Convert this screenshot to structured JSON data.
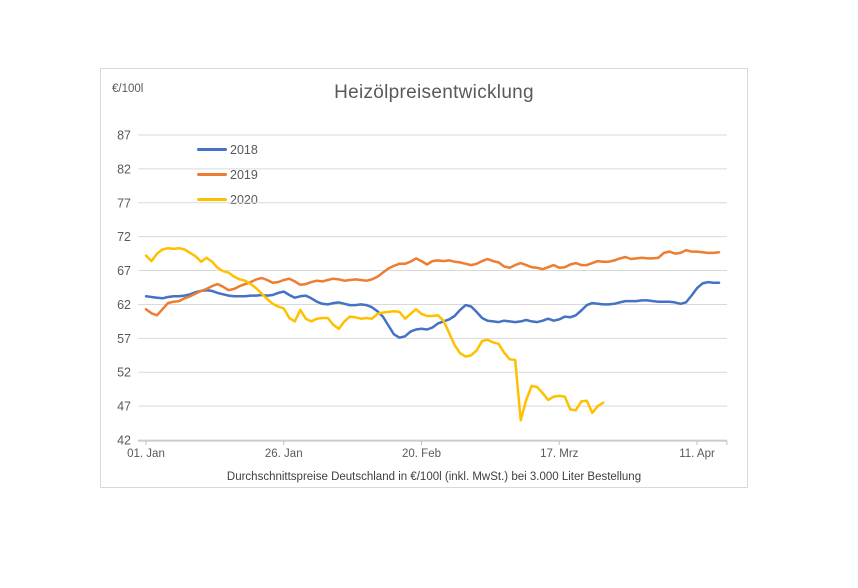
{
  "chart": {
    "unit_label": "€/100l",
    "title": "Heizölpreisentwicklung",
    "caption": "Durchschnittspreise Deutschland in €/100l (inkl. MwSt.) bei 3.000 Liter Bestellung"
  },
  "chart_data": {
    "type": "line",
    "title": "Heizölpreisentwicklung",
    "ylabel": "€/100l",
    "xlabel": "",
    "ylim": [
      42,
      87
    ],
    "y_ticks": [
      87,
      82,
      77,
      72,
      67,
      62,
      57,
      52,
      47,
      42
    ],
    "x_ticks": [
      {
        "day": 0,
        "label": "01. Jan"
      },
      {
        "day": 25,
        "label": "26. Jan"
      },
      {
        "day": 50,
        "label": "20. Feb"
      },
      {
        "day": 75,
        "label": "17. Mrz"
      },
      {
        "day": 100,
        "label": "11. Apr"
      }
    ],
    "x_unit": "days since 01. Jan, daily prices",
    "grid": "horizontal",
    "legend_position": "top-left",
    "axis_color": "#bfbfbf",
    "grid_color": "#d9d9d9",
    "text_color": "#595959",
    "series": [
      {
        "name": "2018",
        "color": "#4472C4",
        "start_day": 0,
        "values": [
          63.2,
          63.1,
          63.0,
          62.9,
          63.1,
          63.2,
          63.2,
          63.3,
          63.5,
          63.8,
          64.0,
          64.1,
          64.0,
          63.7,
          63.5,
          63.3,
          63.2,
          63.2,
          63.2,
          63.3,
          63.3,
          63.4,
          63.3,
          63.4,
          63.7,
          63.9,
          63.4,
          63.0,
          63.2,
          63.3,
          62.9,
          62.4,
          62.1,
          62.0,
          62.2,
          62.3,
          62.1,
          61.9,
          61.9,
          62.0,
          61.9,
          61.6,
          61.0,
          60.2,
          58.9,
          57.6,
          57.1,
          57.3,
          58.0,
          58.3,
          58.4,
          58.3,
          58.6,
          59.2,
          59.5,
          59.8,
          60.3,
          61.2,
          61.9,
          61.7,
          60.9,
          60.0,
          59.6,
          59.5,
          59.4,
          59.6,
          59.5,
          59.4,
          59.5,
          59.7,
          59.5,
          59.4,
          59.6,
          59.9,
          59.6,
          59.8,
          60.2,
          60.1,
          60.4,
          61.1,
          61.9,
          62.2,
          62.1,
          62.0,
          62.0,
          62.1,
          62.3,
          62.5,
          62.5,
          62.5,
          62.6,
          62.6,
          62.5,
          62.4,
          62.4,
          62.4,
          62.3,
          62.1,
          62.3,
          63.3,
          64.4,
          65.1,
          65.3,
          65.2,
          65.2
        ]
      },
      {
        "name": "2019",
        "color": "#ED7D31",
        "start_day": 0,
        "values": [
          61.3,
          60.7,
          60.4,
          61.3,
          62.2,
          62.4,
          62.5,
          62.9,
          63.2,
          63.6,
          64.0,
          64.3,
          64.7,
          65.0,
          64.6,
          64.1,
          64.3,
          64.7,
          65.0,
          65.3,
          65.7,
          65.9,
          65.6,
          65.2,
          65.3,
          65.6,
          65.8,
          65.4,
          64.9,
          65.0,
          65.3,
          65.5,
          65.4,
          65.6,
          65.8,
          65.7,
          65.5,
          65.6,
          65.7,
          65.6,
          65.5,
          65.7,
          66.1,
          66.7,
          67.3,
          67.7,
          68.0,
          68.0,
          68.3,
          68.8,
          68.4,
          67.9,
          68.4,
          68.5,
          68.4,
          68.5,
          68.3,
          68.2,
          68.0,
          67.8,
          68.0,
          68.4,
          68.7,
          68.4,
          68.2,
          67.6,
          67.4,
          67.8,
          68.1,
          67.8,
          67.5,
          67.4,
          67.2,
          67.5,
          67.8,
          67.4,
          67.5,
          67.9,
          68.1,
          67.8,
          67.8,
          68.1,
          68.4,
          68.3,
          68.3,
          68.5,
          68.8,
          69.0,
          68.7,
          68.8,
          68.9,
          68.8,
          68.8,
          68.9,
          69.6,
          69.8,
          69.5,
          69.6,
          70.0,
          69.8,
          69.8,
          69.7,
          69.6,
          69.6,
          69.7
        ]
      },
      {
        "name": "2020",
        "color": "#FFC000",
        "start_day": 0,
        "values": [
          69.2,
          68.4,
          69.5,
          70.1,
          70.3,
          70.2,
          70.3,
          70.1,
          69.6,
          69.1,
          68.3,
          68.9,
          68.3,
          67.4,
          66.9,
          66.7,
          66.1,
          65.7,
          65.5,
          65.0,
          64.4,
          63.6,
          62.8,
          62.1,
          61.7,
          61.4,
          60.0,
          59.5,
          61.2,
          59.9,
          59.5,
          59.9,
          60.0,
          60.0,
          59.0,
          58.4,
          59.5,
          60.2,
          60.1,
          59.9,
          60.0,
          59.9,
          60.6,
          60.8,
          60.9,
          61.0,
          60.9,
          59.9,
          60.6,
          61.3,
          60.6,
          60.3,
          60.3,
          60.4,
          59.6,
          57.8,
          56.0,
          54.8,
          54.3,
          54.5,
          55.2,
          56.6,
          56.8,
          56.4,
          56.2,
          54.9,
          53.9,
          53.8,
          44.9,
          47.9,
          50.0,
          49.8,
          48.9,
          47.9,
          48.4,
          48.5,
          48.4,
          46.5,
          46.4,
          47.7,
          47.8,
          46.0,
          47.0,
          47.5
        ]
      }
    ]
  }
}
